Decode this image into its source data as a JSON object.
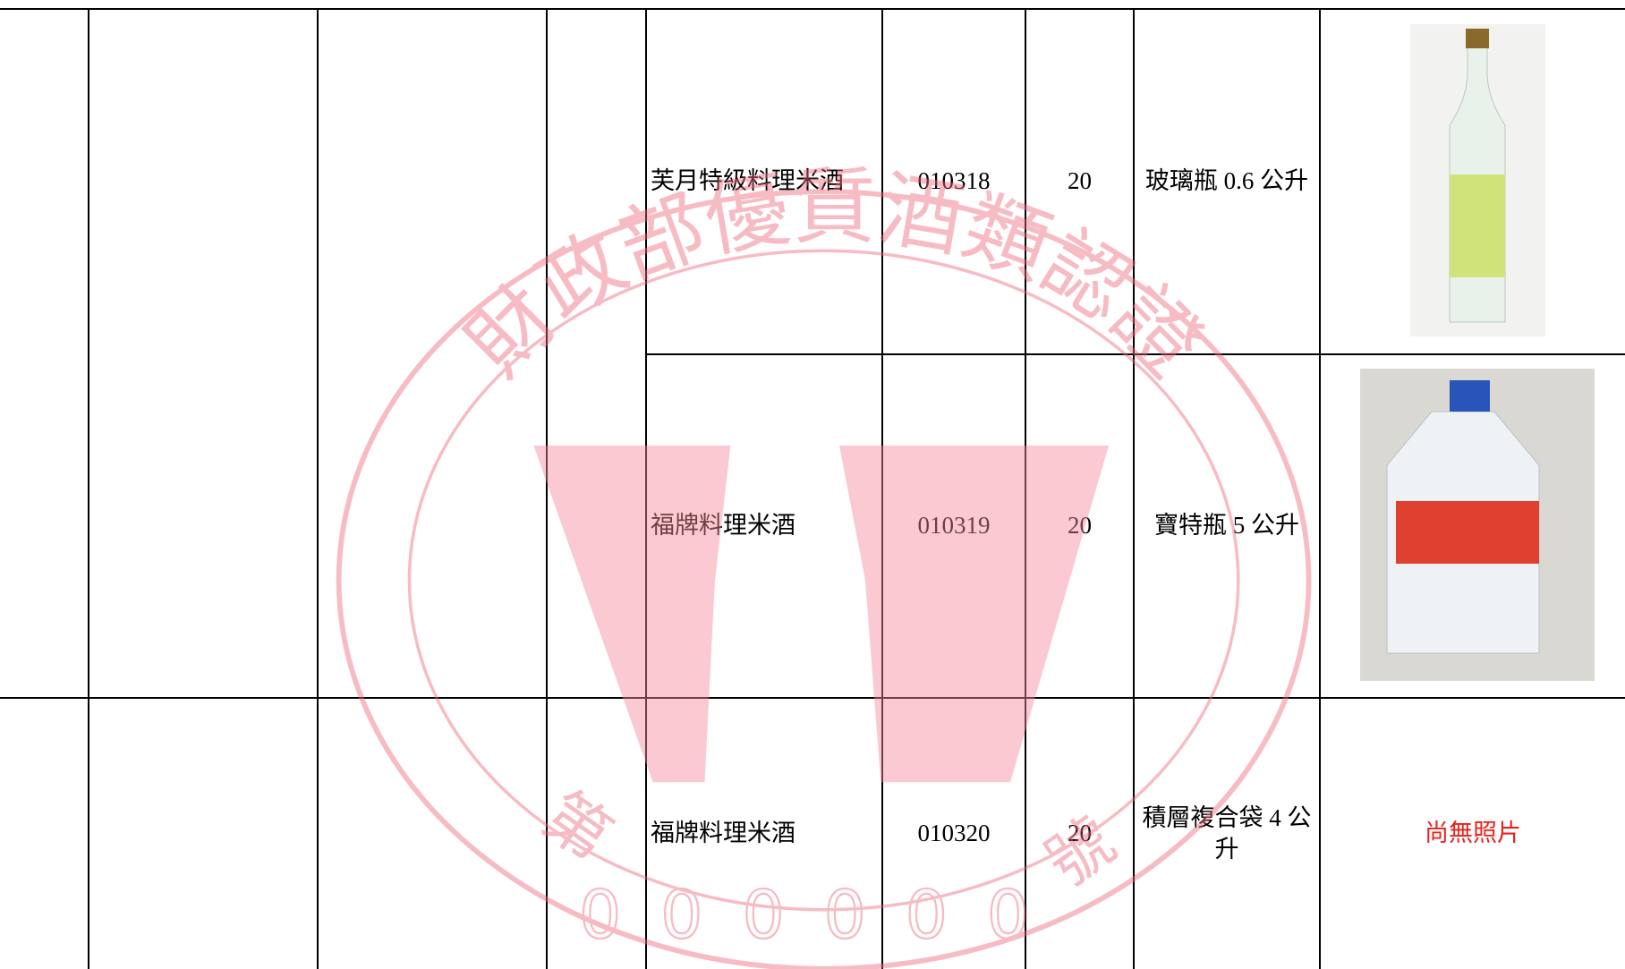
{
  "rows": [
    {
      "name": "芙月特級料理米酒",
      "code": "010318",
      "alcohol": 20,
      "package": "玻璃瓶 0.6 公升"
    },
    {
      "name": "福牌料理米酒",
      "code": "010319",
      "alcohol": 20,
      "package": "寶特瓶 5 公升"
    },
    {
      "name": "福牌料理米酒",
      "code": "010320",
      "alcohol": 20,
      "package": "積層複合袋 4 公升",
      "photo": "尚無照片"
    }
  ],
  "watermark": {
    "arc_text": "財政部優質酒類認證",
    "prefix": "第",
    "number": "000000",
    "suffix": "號"
  }
}
